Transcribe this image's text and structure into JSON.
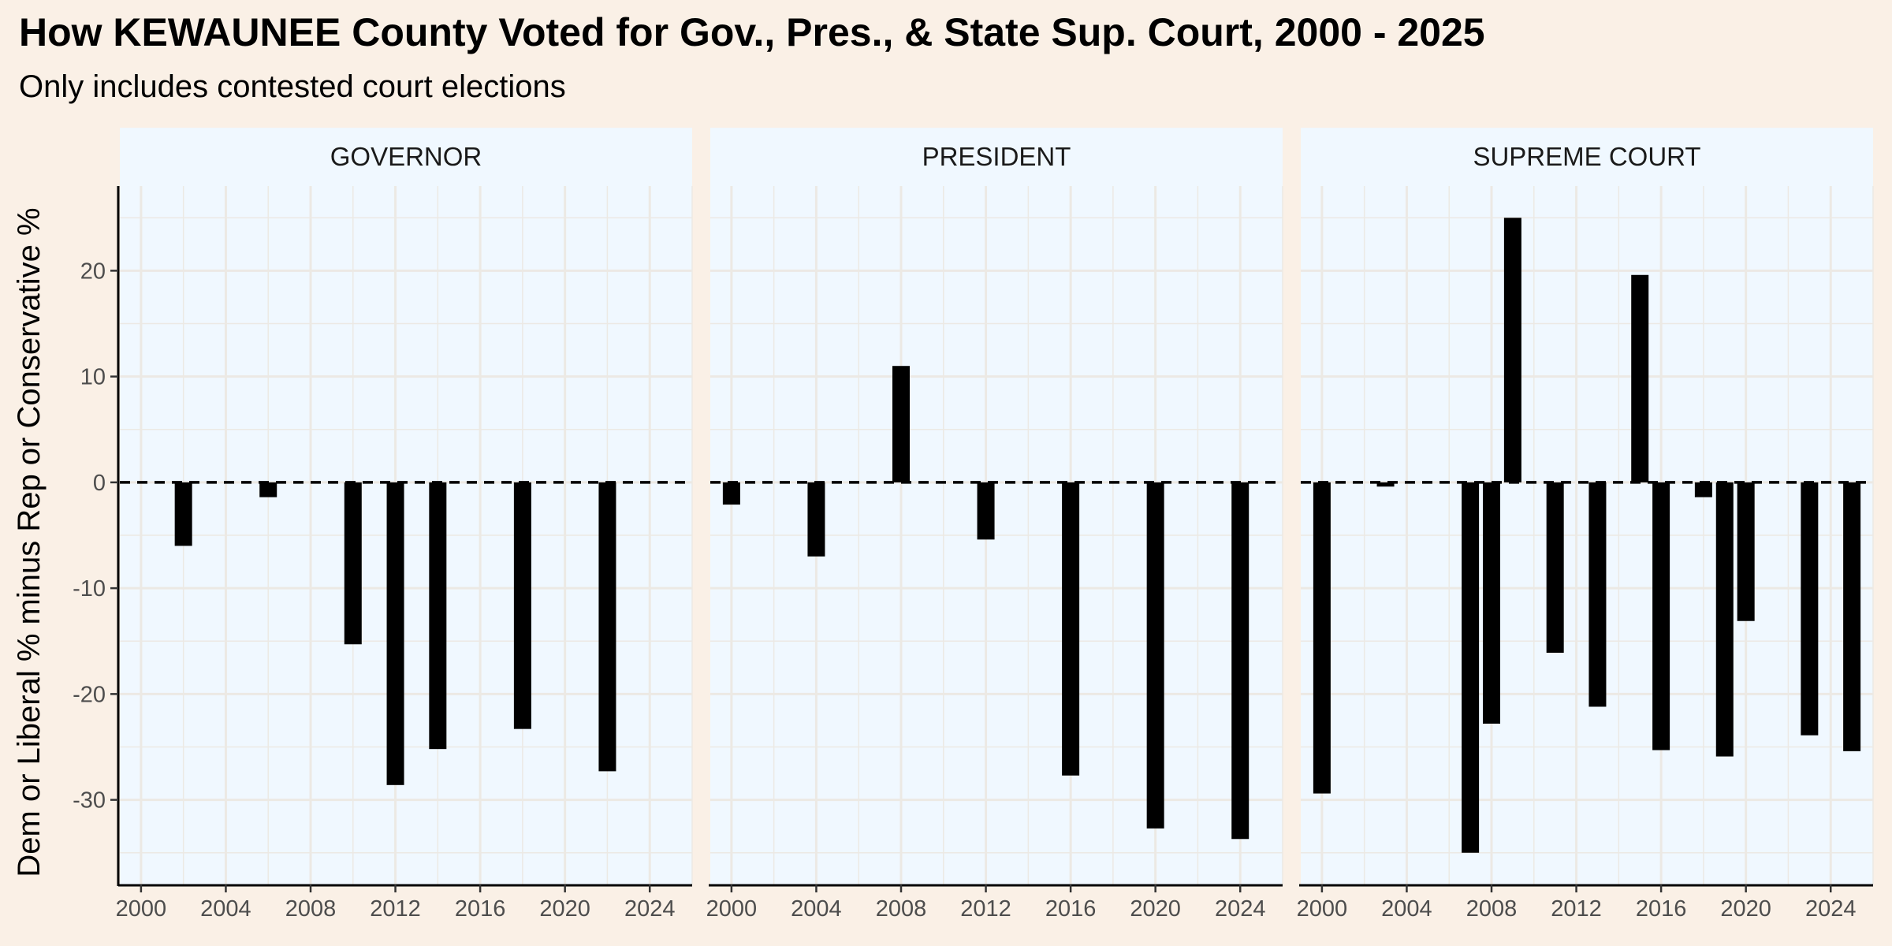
{
  "colors": {
    "page_background": "#FAF0E6",
    "panel_background": "#F0F8FF",
    "grid": "#ECE9E4",
    "bar": "#000000",
    "reference_line": "#000000"
  },
  "chart_data": {
    "type": "bar",
    "title": "How KEWAUNEE County Voted for Gov., Pres., & State Sup. Court, 2000 - 2025",
    "subtitle": "Only includes contested court elections",
    "ylabel": "Dem or Liberal % minus Rep or Conservative %",
    "xlabel": "",
    "xlim": [
      1999,
      2026
    ],
    "ylim": [
      -38,
      28
    ],
    "x_ticks": [
      "2000",
      "2004",
      "2008",
      "2012",
      "2016",
      "2020",
      "2024"
    ],
    "y_ticks": [
      "20",
      "10",
      "0",
      "-10",
      "-20",
      "-30"
    ],
    "y_tick_values": [
      20,
      10,
      0,
      -10,
      -20,
      -30
    ],
    "x_tick_values": [
      2000,
      2004,
      2008,
      2012,
      2016,
      2020,
      2024
    ],
    "reference_line": {
      "y": 0,
      "style": "dashed"
    },
    "grid": true,
    "legend": "none",
    "panels": [
      {
        "name": "GOVERNOR",
        "x": [
          2002,
          2006,
          2010,
          2012,
          2014,
          2018,
          2022
        ],
        "values": [
          -6,
          -1.4,
          -15.3,
          -28.6,
          -25.2,
          -23.3,
          -27.3
        ]
      },
      {
        "name": "PRESIDENT",
        "x": [
          2000,
          2004,
          2008,
          2012,
          2016,
          2020,
          2024
        ],
        "values": [
          -2.1,
          -7,
          11,
          -5.4,
          -27.7,
          -32.7,
          -33.7
        ]
      },
      {
        "name": "SUPREME COURT",
        "x": [
          2000,
          2003,
          2007,
          2008,
          2009,
          2011,
          2013,
          2015,
          2016,
          2018,
          2019,
          2020,
          2023,
          2025
        ],
        "values": [
          -29.4,
          -0.4,
          -35,
          -22.8,
          25,
          -16.1,
          -21.2,
          19.6,
          -25.3,
          -1.4,
          -25.9,
          -13.1,
          -23.9,
          -25.4
        ]
      }
    ]
  }
}
